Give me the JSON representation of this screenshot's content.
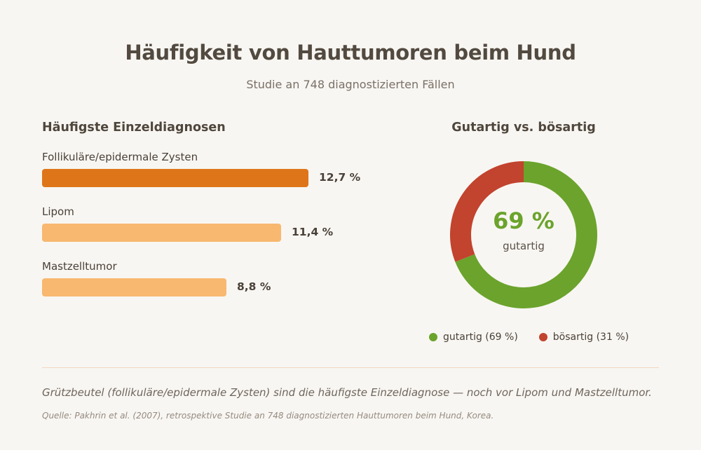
{
  "title": "Häufigkeit von Hauttumoren beim Hund",
  "subtitle": "Studie an 748 diagnostizierten Fällen",
  "colors": {
    "accent_dark_orange": "#de7619",
    "accent_light_orange": "#f8b870",
    "benign_green": "#6ba32c",
    "malignant_red": "#c2432e"
  },
  "chart_data": [
    {
      "type": "bar",
      "title": "Häufigste Einzeldiagnosen",
      "orientation": "horizontal",
      "categories": [
        "Follikuläre/epidermale Zysten",
        "Lipom",
        "Mastzelltumor"
      ],
      "values": [
        12.7,
        11.4,
        8.8
      ],
      "value_labels": [
        "12,7 %",
        "11,4 %",
        "8,8 %"
      ],
      "unit": "%",
      "xlim": [
        0,
        12.7
      ],
      "bar_colors": [
        "#de7619",
        "#f8b870",
        "#f8b870"
      ],
      "grid": false
    },
    {
      "type": "pie",
      "style": "donut",
      "title": "Gutartig vs. bösartig",
      "categories": [
        "gutartig",
        "bösartig"
      ],
      "values": [
        69,
        31
      ],
      "unit": "%",
      "slice_colors": [
        "#6ba32c",
        "#c2432e"
      ],
      "center_value": "69 %",
      "center_label": "gutartig",
      "legend": [
        "gutartig (69 %)",
        "bösartig (31 %)"
      ],
      "legend_position": "bottom"
    }
  ],
  "footer": {
    "note": "Grützbeutel (follikuläre/epidermale Zysten) sind die häufigste Einzeldiagnose — noch vor Lipom und Mastzelltumor.",
    "source": "Quelle: Pakhrin et al. (2007), retrospektive Studie an 748 diagnostizierten Hauttumoren beim Hund, Korea."
  }
}
